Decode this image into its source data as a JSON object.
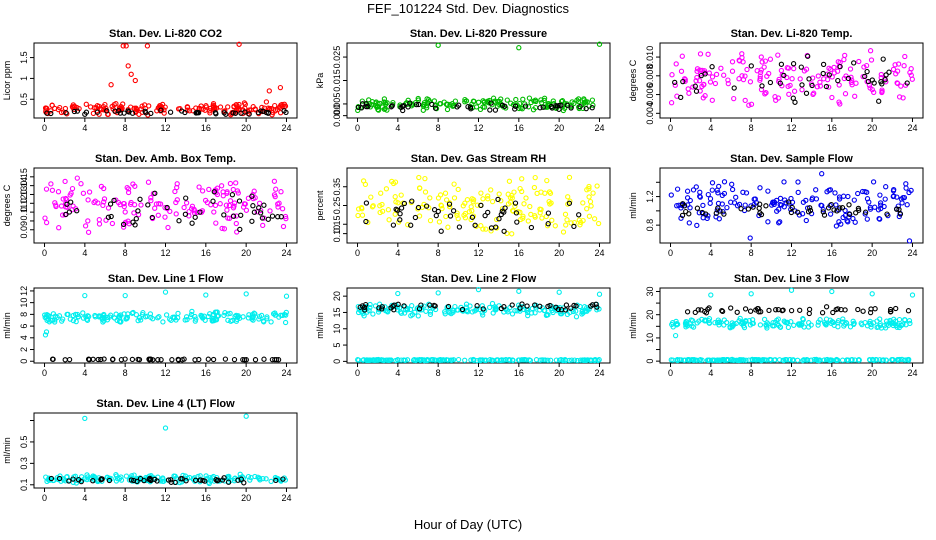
{
  "page_title": "FEF_101224  Std. Dev. Diagnostics",
  "x_axis_title": "Hour of Day (UTC)",
  "chart_data": [
    {
      "type": "scatter",
      "title": "Stan. Dev. Li-820 CO2",
      "ylabel": "Licor ppm",
      "xlim": [
        0,
        24
      ],
      "xticks": [
        0,
        4,
        8,
        12,
        16,
        20,
        24
      ],
      "ylim": [
        0.05,
        1.85
      ],
      "yticks": [
        0.5,
        1.0,
        1.5
      ],
      "ytick_labels": [
        "0.5",
        "1",
        "1.5"
      ],
      "series": [
        {
          "color": "#ff0000",
          "band": [
            0.1,
            0.45
          ],
          "outliers": [
            [
              7.8,
              1.78
            ],
            [
              8.1,
              1.78
            ],
            [
              10.2,
              1.78
            ],
            [
              19.3,
              1.82
            ],
            [
              8.3,
              1.3
            ],
            [
              8.6,
              1.1
            ],
            [
              9.0,
              0.95
            ],
            [
              6.6,
              0.85
            ],
            [
              23.4,
              0.78
            ],
            [
              22.3,
              0.7
            ]
          ]
        },
        {
          "color": "#000000",
          "band": [
            0.12,
            0.24
          ],
          "outliers": []
        }
      ]
    },
    {
      "type": "scatter",
      "title": "Stan. Dev. Li-820 Pressure",
      "ylabel": "kPa",
      "xlim": [
        0,
        24
      ],
      "xticks": [
        0,
        4,
        8,
        12,
        16,
        20,
        24
      ],
      "ylim": [
        -0.001,
        0.031
      ],
      "yticks": [
        0.0,
        0.005,
        0.015,
        0.025
      ],
      "ytick_labels": [
        "0.000",
        "0.005",
        "0.015",
        "0.025"
      ],
      "series": [
        {
          "color": "#00bb00",
          "band": [
            0.002,
            0.008
          ],
          "outliers": [
            [
              8.0,
              0.03
            ],
            [
              16.0,
              0.029
            ],
            [
              24.0,
              0.0305
            ]
          ]
        },
        {
          "color": "#000000",
          "band": [
            0.002,
            0.006
          ],
          "outliers": []
        }
      ]
    },
    {
      "type": "scatter",
      "title": "Stan. Dev. Li-820 Temp.",
      "ylabel": "degrees C",
      "xlim": [
        0,
        24
      ],
      "xticks": [
        0,
        4,
        8,
        12,
        16,
        20,
        24
      ],
      "ylim": [
        0.0035,
        0.0115
      ],
      "yticks": [
        0.004,
        0.006,
        0.008,
        0.01
      ],
      "ytick_labels": [
        "0.004",
        "0.006",
        "0.008",
        "0.010"
      ],
      "series": [
        {
          "color": "#ff00ff",
          "band": [
            0.0045,
            0.011
          ],
          "outliers": []
        },
        {
          "color": "#000000",
          "band": [
            0.005,
            0.0105
          ],
          "outliers": []
        }
      ]
    },
    {
      "type": "scatter",
      "title": "Stan. Dev. Amb. Box Temp.",
      "ylabel": "degrees C",
      "xlim": [
        0,
        24
      ],
      "xticks": [
        0,
        4,
        8,
        12,
        16,
        20,
        24
      ],
      "ylim": [
        0.075,
        0.16
      ],
      "yticks": [
        0.09,
        0.1,
        0.11,
        0.12,
        0.13,
        0.14,
        0.15
      ],
      "ytick_labels": [
        "0.09",
        "",
        "0.11",
        "0.12",
        "0.13",
        "0.14",
        "0.15"
      ],
      "series": [
        {
          "color": "#ff00ff",
          "band": [
            0.085,
            0.15
          ],
          "outliers": []
        },
        {
          "color": "#000000",
          "band": [
            0.085,
            0.135
          ],
          "outliers": []
        }
      ]
    },
    {
      "type": "scatter",
      "title": "Stan. Dev. Gas Stream RH",
      "ylabel": "percent",
      "xlim": [
        0,
        24
      ],
      "xticks": [
        0,
        4,
        8,
        12,
        16,
        20,
        24
      ],
      "ylim": [
        0.05,
        0.45
      ],
      "yticks": [
        0.1,
        0.15,
        0.25,
        0.35
      ],
      "ytick_labels": [
        "0.10",
        "0.15",
        "0.25",
        "0.35"
      ],
      "series": [
        {
          "color": "#ffff00",
          "band": [
            0.08,
            0.42
          ],
          "outliers": []
        },
        {
          "color": "#000000",
          "band": [
            0.09,
            0.3
          ],
          "outliers": []
        }
      ]
    },
    {
      "type": "scatter",
      "title": "Stan. Dev. Sample Flow",
      "ylabel": "ml/min",
      "xlim": [
        0,
        24
      ],
      "xticks": [
        0,
        4,
        8,
        12,
        16,
        20,
        24
      ],
      "ylim": [
        0.55,
        1.6
      ],
      "yticks": [
        0.8,
        1.0,
        1.2,
        1.4
      ],
      "ytick_labels": [
        "0.8",
        "",
        "1.2",
        ""
      ],
      "series": [
        {
          "color": "#0000ee",
          "band": [
            0.75,
            1.45
          ],
          "outliers": [
            [
              7.9,
              0.62
            ],
            [
              15.0,
              1.52
            ],
            [
              23.7,
              0.58
            ]
          ]
        },
        {
          "color": "#000000",
          "band": [
            0.9,
            1.15
          ],
          "outliers": []
        }
      ]
    },
    {
      "type": "scatter",
      "title": "Stan. Dev. Line 1 Flow",
      "ylabel": "ml/min",
      "xlim": [
        0,
        24
      ],
      "xticks": [
        0,
        4,
        8,
        12,
        16,
        20,
        24
      ],
      "ylim": [
        -0.3,
        12.5
      ],
      "yticks": [
        0,
        2,
        4,
        6,
        8,
        10,
        12
      ],
      "ytick_labels": [
        "0",
        "2",
        "4",
        "6",
        "8",
        "10",
        "12"
      ],
      "series": [
        {
          "color": "#00eeee",
          "band": [
            6.5,
            8.6
          ],
          "outliers": [
            [
              4.0,
              11.2
            ],
            [
              8.0,
              11.2
            ],
            [
              12.0,
              11.8
            ],
            [
              16.0,
              11.3
            ],
            [
              20.0,
              11.5
            ],
            [
              24.0,
              11.1
            ],
            [
              0.1,
              4.5
            ],
            [
              0.2,
              5.0
            ]
          ]
        },
        {
          "color": "#000000",
          "band": [
            0.2,
            0.4
          ],
          "outliers": []
        }
      ]
    },
    {
      "type": "scatter",
      "title": "Stan. Dev. Line 2 Flow",
      "ylabel": "ml/min",
      "xlim": [
        0,
        24
      ],
      "xticks": [
        0,
        4,
        8,
        12,
        16,
        20,
        24
      ],
      "ylim": [
        -0.5,
        22.5
      ],
      "yticks": [
        0,
        5,
        10,
        15,
        20
      ],
      "ytick_labels": [
        "0",
        "5",
        "10",
        "15",
        "20"
      ],
      "series": [
        {
          "color": "#00eeee",
          "band": [
            13.5,
            18.0
          ],
          "outliers": [
            [
              4.0,
              20.8
            ],
            [
              8.0,
              21.0
            ],
            [
              12.0,
              22.0
            ],
            [
              16.0,
              21.5
            ],
            [
              20.0,
              21.2
            ],
            [
              24.0,
              20.6
            ]
          ]
        },
        {
          "color": "#000000",
          "band": [
            15.5,
            18.0
          ],
          "outliers": []
        },
        {
          "color": "#00eeee",
          "band": [
            0.2,
            0.6
          ],
          "outliers": []
        }
      ]
    },
    {
      "type": "scatter",
      "title": "Stan. Dev. Line 3 Flow",
      "ylabel": "ml/min",
      "xlim": [
        0,
        24
      ],
      "xticks": [
        0,
        4,
        8,
        12,
        16,
        20,
        24
      ],
      "ylim": [
        -0.8,
        31.5
      ],
      "yticks": [
        0,
        5,
        10,
        15,
        20,
        25,
        30
      ],
      "ytick_labels": [
        "0",
        "",
        "10",
        "",
        "20",
        "",
        "30"
      ],
      "series": [
        {
          "color": "#00eeee",
          "band": [
            14.0,
            18.5
          ],
          "outliers": [
            [
              4.0,
              28.5
            ],
            [
              8.0,
              29.0
            ],
            [
              12.0,
              30.5
            ],
            [
              16.0,
              30.0
            ],
            [
              20.0,
              29.0
            ],
            [
              24.0,
              28.5
            ],
            [
              0.5,
              11.0
            ]
          ]
        },
        {
          "color": "#000000",
          "band": [
            20.5,
            23.5
          ],
          "outliers": []
        },
        {
          "color": "#00eeee",
          "band": [
            0.2,
            0.8
          ],
          "outliers": []
        }
      ]
    },
    {
      "type": "scatter",
      "title": "Stan. Dev. Line 4 (LT) Flow",
      "ylabel": "ml/min",
      "xlim": [
        0,
        24
      ],
      "xticks": [
        0,
        4,
        8,
        12,
        16,
        20,
        24
      ],
      "ylim": [
        0.07,
        0.77
      ],
      "yticks": [
        0.1,
        0.3,
        0.5,
        0.7
      ],
      "ytick_labels": [
        "0.1",
        "0.3",
        "0.5",
        ""
      ],
      "series": [
        {
          "color": "#00eeee",
          "band": [
            0.11,
            0.2
          ],
          "outliers": [
            [
              4.0,
              0.72
            ],
            [
              12.0,
              0.63
            ],
            [
              20.0,
              0.74
            ]
          ]
        },
        {
          "color": "#000000",
          "band": [
            0.11,
            0.17
          ],
          "outliers": []
        }
      ]
    }
  ]
}
